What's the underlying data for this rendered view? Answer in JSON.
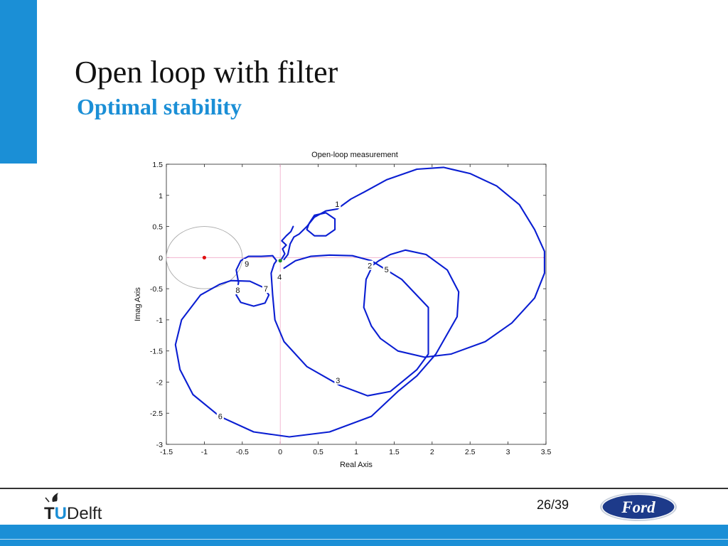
{
  "slide": {
    "title": "Open loop with filter",
    "subtitle": "Optimal stability",
    "page": "26/39",
    "left_logo_text": "TUDelft",
    "right_logo_text": "Ford",
    "accent_color": "#1b8fd6"
  },
  "chart_data": {
    "type": "line",
    "title": "Open-loop measurement",
    "xlabel": "Real Axis",
    "ylabel": "Imag Axis",
    "xlim": [
      -1.5,
      3.5
    ],
    "ylim": [
      -3,
      1.5
    ],
    "xticks": [
      -1.5,
      -1,
      -0.5,
      0,
      0.5,
      1,
      1.5,
      2,
      2.5,
      3,
      3.5
    ],
    "xtick_labels": [
      "-1.5",
      "-1",
      "-0.5",
      "0",
      "0.5",
      "1",
      "1.5",
      "2",
      "2.5",
      "3",
      "3.5"
    ],
    "yticks": [
      1.5,
      1,
      0.5,
      0,
      -0.5,
      -1,
      -1.5,
      -2,
      -2.5,
      -3
    ],
    "ytick_labels": [
      "1.5",
      "1",
      "0.5",
      "0",
      "-0.5",
      "-1",
      "-1.5",
      "-2",
      "-2.5",
      "-3"
    ],
    "grid": false,
    "line_color": "#0a1ed2",
    "circle": {
      "center": [
        -1,
        0
      ],
      "radius": 0.5,
      "color": "#a9a9a9"
    },
    "critical_point": {
      "x": -1,
      "y": 0,
      "color": "#e01010"
    },
    "start_point": {
      "x": 0,
      "y": -0.05,
      "color": "#1a8a2a"
    },
    "axis_line_color": "#f0a8c8",
    "series": [
      {
        "points": [
          [
            0.05,
            -0.03
          ],
          [
            0.1,
            0.05
          ],
          [
            0.13,
            0.22
          ],
          [
            0.18,
            0.33
          ],
          [
            0.25,
            0.38
          ],
          [
            0.35,
            0.5
          ],
          [
            0.45,
            0.65
          ],
          [
            0.6,
            0.75
          ],
          [
            0.75,
            0.78
          ],
          [
            0.93,
            0.94
          ],
          [
            1.1,
            1.05
          ],
          [
            1.4,
            1.25
          ],
          [
            1.8,
            1.42
          ],
          [
            2.15,
            1.45
          ],
          [
            2.5,
            1.35
          ],
          [
            2.85,
            1.15
          ],
          [
            3.15,
            0.85
          ],
          [
            3.35,
            0.45
          ],
          [
            3.48,
            0.1
          ],
          [
            3.48,
            -0.25
          ],
          [
            3.35,
            -0.65
          ],
          [
            3.05,
            -1.05
          ],
          [
            2.7,
            -1.35
          ],
          [
            2.25,
            -1.55
          ],
          [
            1.9,
            -1.6
          ],
          [
            1.55,
            -1.5
          ],
          [
            1.32,
            -1.3
          ],
          [
            1.2,
            -1.1
          ],
          [
            1.1,
            -0.8
          ],
          [
            1.13,
            -0.35
          ],
          [
            1.22,
            -0.12
          ],
          [
            1.3,
            -0.05
          ],
          [
            1.45,
            0.05
          ],
          [
            1.65,
            0.12
          ],
          [
            1.92,
            0.05
          ],
          [
            2.2,
            -0.2
          ],
          [
            2.35,
            -0.55
          ],
          [
            2.33,
            -0.95
          ],
          [
            2.05,
            -1.55
          ],
          [
            1.8,
            -1.9
          ],
          [
            1.55,
            -2.15
          ],
          [
            1.2,
            -2.55
          ],
          [
            0.65,
            -2.8
          ],
          [
            0.12,
            -2.88
          ],
          [
            -0.35,
            -2.8
          ],
          [
            -0.8,
            -2.55
          ],
          [
            -1.15,
            -2.2
          ],
          [
            -1.32,
            -1.8
          ],
          [
            -1.38,
            -1.4
          ],
          [
            -1.3,
            -1.0
          ],
          [
            -1.05,
            -0.6
          ],
          [
            -0.8,
            -0.43
          ],
          [
            -0.65,
            -0.37
          ],
          [
            -0.4,
            -0.38
          ],
          [
            -0.22,
            -0.48
          ],
          [
            -0.15,
            -0.6
          ],
          [
            -0.2,
            -0.73
          ],
          [
            -0.35,
            -0.78
          ],
          [
            -0.52,
            -0.72
          ],
          [
            -0.58,
            -0.6
          ],
          [
            -0.55,
            -0.4
          ],
          [
            -0.58,
            -0.2
          ],
          [
            -0.52,
            -0.05
          ],
          [
            -0.42,
            0.02
          ],
          [
            -0.25,
            0.02
          ],
          [
            -0.1,
            0.03
          ],
          [
            -0.05,
            -0.05
          ],
          [
            -0.08,
            -0.1
          ],
          [
            -0.12,
            -0.25
          ],
          [
            -0.1,
            -0.6
          ],
          [
            -0.07,
            -1.0
          ],
          [
            0.05,
            -1.35
          ],
          [
            0.35,
            -1.75
          ],
          [
            0.78,
            -2.05
          ],
          [
            1.15,
            -2.22
          ],
          [
            1.45,
            -2.15
          ],
          [
            1.8,
            -1.8
          ],
          [
            1.95,
            -1.55
          ],
          [
            1.95,
            -0.8
          ],
          [
            1.6,
            -0.35
          ],
          [
            1.2,
            -0.05
          ],
          [
            0.95,
            0.03
          ],
          [
            0.65,
            0.04
          ],
          [
            0.4,
            0.02
          ],
          [
            0.2,
            -0.05
          ],
          [
            0.05,
            -0.17
          ]
        ]
      },
      {
        "points": [
          [
            0.38,
            0.55
          ],
          [
            0.45,
            0.68
          ],
          [
            0.6,
            0.72
          ],
          [
            0.72,
            0.62
          ],
          [
            0.72,
            0.45
          ],
          [
            0.6,
            0.35
          ],
          [
            0.45,
            0.35
          ],
          [
            0.35,
            0.45
          ],
          [
            0.38,
            0.55
          ]
        ]
      },
      {
        "points": [
          [
            0.02,
            -0.02
          ],
          [
            0.06,
            0.06
          ],
          [
            0.03,
            0.14
          ],
          [
            0.08,
            0.2
          ],
          [
            0.02,
            0.27
          ],
          [
            0.08,
            0.35
          ],
          [
            0.14,
            0.42
          ],
          [
            0.17,
            0.5
          ]
        ]
      }
    ],
    "point_labels": [
      {
        "text": "1",
        "x": 0.75,
        "y": 0.86
      },
      {
        "text": "2",
        "x": 1.18,
        "y": -0.13
      },
      {
        "text": "5",
        "x": 1.4,
        "y": -0.19
      },
      {
        "text": "3",
        "x": 0.76,
        "y": -1.97
      },
      {
        "text": "4",
        "x": -0.01,
        "y": -0.31
      },
      {
        "text": "6",
        "x": -0.79,
        "y": -2.55
      },
      {
        "text": "7",
        "x": -0.19,
        "y": -0.5
      },
      {
        "text": "8",
        "x": -0.56,
        "y": -0.52
      },
      {
        "text": "9",
        "x": -0.44,
        "y": -0.1
      }
    ]
  }
}
